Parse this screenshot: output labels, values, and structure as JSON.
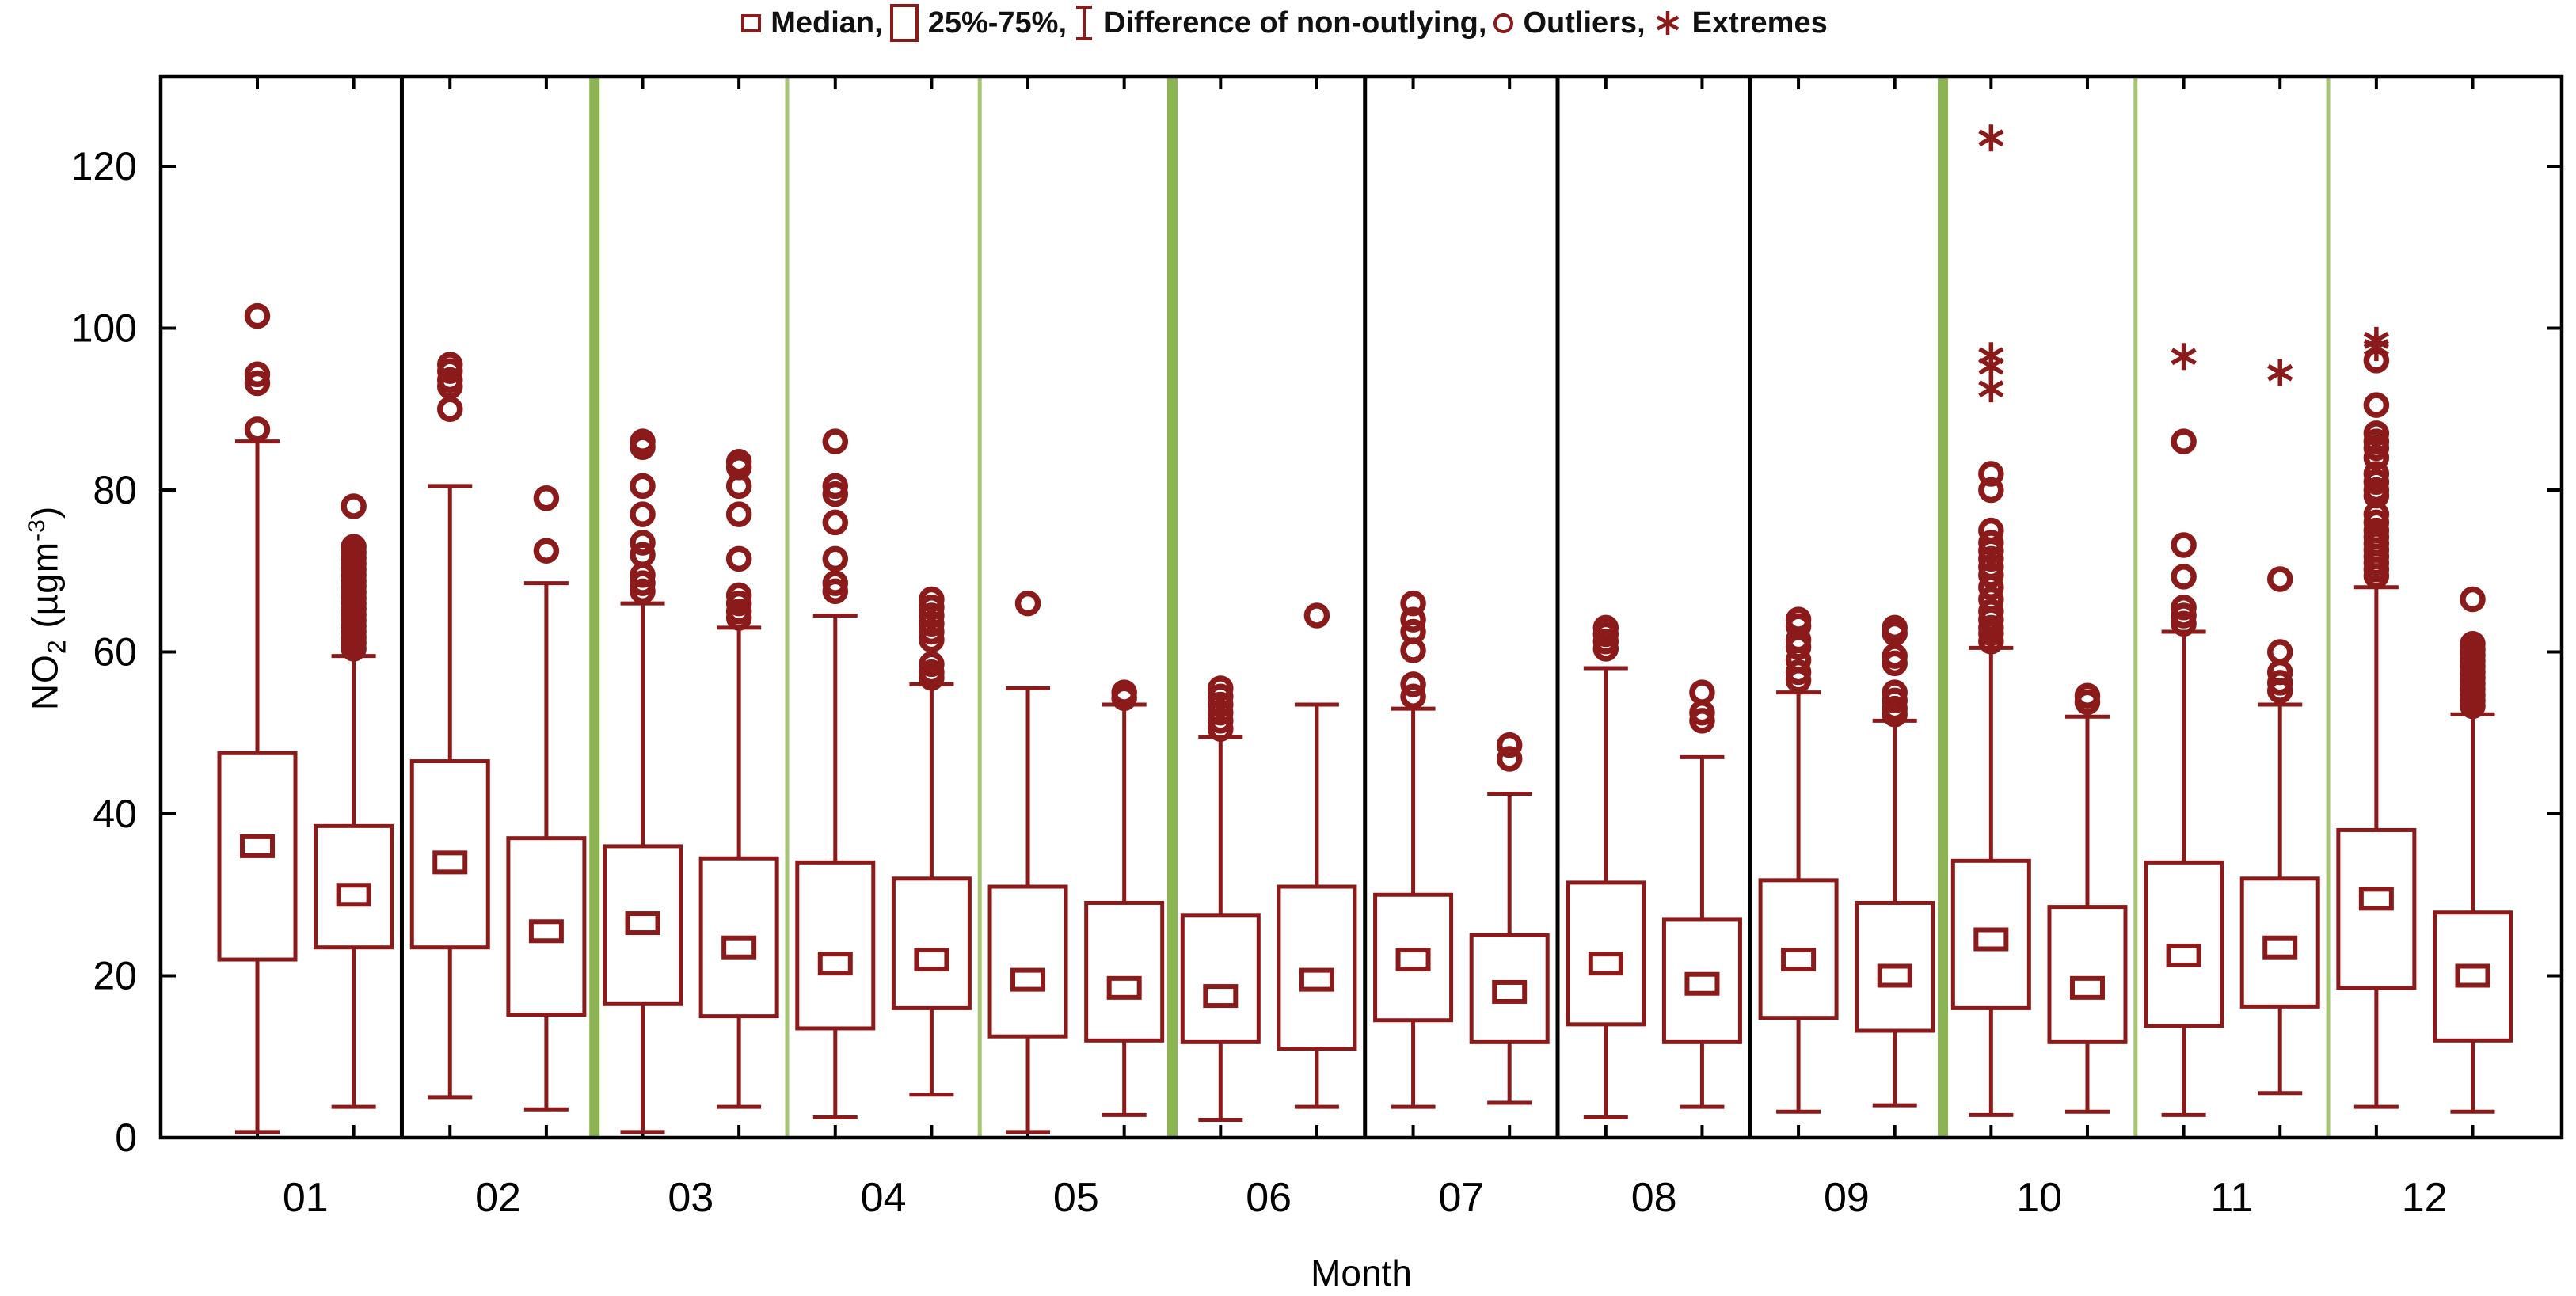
{
  "legend": {
    "items": [
      {
        "icon": "median-square-icon",
        "label": "Median,"
      },
      {
        "icon": "quartile-box-icon",
        "label": "25%-75%,"
      },
      {
        "icon": "whisker-range-icon",
        "label": "Difference of non-outlying,"
      },
      {
        "icon": "outlier-circle-icon",
        "label": "Outliers,"
      },
      {
        "icon": "extreme-asterisk-icon",
        "label": "Extremes"
      }
    ]
  },
  "axes": {
    "ylabel_pre": "NO",
    "ylabel_sub": "2",
    "ylabel_unit": " (µgm",
    "ylabel_sup": "-3",
    "ylabel_close": ")",
    "xlabel": "Month"
  },
  "chart_data": {
    "type": "box",
    "title": "",
    "xlabel": "Month",
    "ylabel": "NO2 (µgm-3)",
    "ylim": [
      0,
      131
    ],
    "y_ticks": [
      0,
      20,
      40,
      60,
      80,
      100,
      120
    ],
    "grid": false,
    "legend_position": "top-center",
    "colors": {
      "box": "#8B1A1A",
      "separator_black": "#000000",
      "separator_green_thick": "#8CB452",
      "separator_green_thin": "#A6C573"
    },
    "months": [
      {
        "label": "01",
        "separator_after": "black",
        "boxes": [
          {
            "median": 36,
            "q1": 22,
            "q3": 47.5,
            "whisker_low": 0.7,
            "whisker_high": 86,
            "outliers": [
              101.5,
              94.3,
              93.2,
              87.5
            ],
            "extremes": []
          },
          {
            "median": 30,
            "q1": 23.5,
            "q3": 38.5,
            "whisker_low": 3.8,
            "whisker_high": 59.5,
            "outliers": [
              78,
              73,
              72.3,
              71.6,
              70.9,
              70.2,
              69.5,
              68.8,
              68.1,
              67.4,
              66.7,
              66,
              65.3,
              64.6,
              63.9,
              63.2,
              62.5,
              61.8,
              61.1,
              60.4
            ],
            "extremes": []
          }
        ]
      },
      {
        "label": "02",
        "separator_after": "green-thick",
        "boxes": [
          {
            "median": 34,
            "q1": 23.5,
            "q3": 46.5,
            "whisker_low": 5,
            "whisker_high": 80.5,
            "outliers": [
              95.5,
              94.7,
              93.6,
              92.8,
              90
            ],
            "extremes": []
          },
          {
            "median": 25.5,
            "q1": 15.2,
            "q3": 37,
            "whisker_low": 3.5,
            "whisker_high": 68.5,
            "outliers": [
              79,
              72.5
            ],
            "extremes": []
          }
        ]
      },
      {
        "label": "03",
        "separator_after": "green-thin",
        "boxes": [
          {
            "median": 26.5,
            "q1": 16.5,
            "q3": 36,
            "whisker_low": 0.7,
            "whisker_high": 66,
            "outliers": [
              86,
              85.3,
              80.5,
              77,
              73.5,
              72,
              69.5,
              68.5,
              67.5
            ],
            "extremes": []
          },
          {
            "median": 23.5,
            "q1": 15,
            "q3": 34.5,
            "whisker_low": 3.8,
            "whisker_high": 63,
            "outliers": [
              83.5,
              82.8,
              80.5,
              77,
              71.5,
              67,
              66,
              65,
              64.2
            ],
            "extremes": []
          }
        ]
      },
      {
        "label": "04",
        "separator_after": "green-thin",
        "boxes": [
          {
            "median": 21.5,
            "q1": 13.5,
            "q3": 34,
            "whisker_low": 2.5,
            "whisker_high": 64.5,
            "outliers": [
              86,
              80.5,
              79.5,
              76,
              71.5,
              68.5,
              67.5
            ],
            "extremes": []
          },
          {
            "median": 22,
            "q1": 16,
            "q3": 32,
            "whisker_low": 5.3,
            "whisker_high": 56,
            "outliers": [
              66.5,
              65.5,
              64.5,
              63.5,
              62.5,
              61.5,
              58.5,
              57.5,
              56.8
            ],
            "extremes": []
          }
        ]
      },
      {
        "label": "05",
        "separator_after": "green-thick",
        "boxes": [
          {
            "median": 19.5,
            "q1": 12.5,
            "q3": 31,
            "whisker_low": 0.7,
            "whisker_high": 55.5,
            "outliers": [
              66
            ],
            "extremes": []
          },
          {
            "median": 18.5,
            "q1": 12,
            "q3": 29,
            "whisker_low": 2.8,
            "whisker_high": 53.5,
            "outliers": [
              55,
              54.3
            ],
            "extremes": []
          }
        ]
      },
      {
        "label": "06",
        "separator_after": "black",
        "boxes": [
          {
            "median": 17.5,
            "q1": 11.8,
            "q3": 27.5,
            "whisker_low": 2.2,
            "whisker_high": 49.5,
            "outliers": [
              55.5,
              54.5,
              53.5,
              52.5,
              51.5,
              50.5
            ],
            "extremes": []
          },
          {
            "median": 19.5,
            "q1": 11,
            "q3": 31,
            "whisker_low": 3.8,
            "whisker_high": 53.5,
            "outliers": [
              64.5
            ],
            "extremes": []
          }
        ]
      },
      {
        "label": "07",
        "separator_after": "black",
        "boxes": [
          {
            "median": 22,
            "q1": 14.5,
            "q3": 30,
            "whisker_low": 3.8,
            "whisker_high": 53,
            "outliers": [
              66,
              64,
              62.5,
              60.2,
              56,
              54.5
            ],
            "extremes": []
          },
          {
            "median": 18,
            "q1": 11.8,
            "q3": 25,
            "whisker_low": 4.3,
            "whisker_high": 42.5,
            "outliers": [
              48.5,
              46.8
            ],
            "extremes": []
          }
        ]
      },
      {
        "label": "08",
        "separator_after": "black",
        "boxes": [
          {
            "median": 21.5,
            "q1": 14,
            "q3": 31.5,
            "whisker_low": 2.5,
            "whisker_high": 58,
            "outliers": [
              63,
              62.2,
              61.3,
              60.4
            ],
            "extremes": []
          },
          {
            "median": 19,
            "q1": 11.8,
            "q3": 27,
            "whisker_low": 3.8,
            "whisker_high": 47,
            "outliers": [
              55,
              52.5,
              51.5
            ],
            "extremes": []
          }
        ]
      },
      {
        "label": "09",
        "separator_after": "green-thick",
        "boxes": [
          {
            "median": 22,
            "q1": 14.8,
            "q3": 31.8,
            "whisker_low": 3.2,
            "whisker_high": 55,
            "outliers": [
              64,
              63.2,
              61.5,
              60.6,
              59,
              57.5,
              56.5
            ],
            "extremes": []
          },
          {
            "median": 20,
            "q1": 13.2,
            "q3": 29,
            "whisker_low": 4,
            "whisker_high": 51.5,
            "outliers": [
              63,
              62.3,
              59.5,
              58.6,
              55,
              54,
              53,
              52.3
            ],
            "extremes": []
          }
        ]
      },
      {
        "label": "10",
        "separator_after": "green-thin",
        "boxes": [
          {
            "median": 24.5,
            "q1": 16,
            "q3": 34.2,
            "whisker_low": 2.8,
            "whisker_high": 60.5,
            "outliers": [
              82,
              80,
              75,
              73.5,
              72.5,
              71.5,
              70.5,
              69.5,
              68,
              66.5,
              65,
              64,
              63,
              62.3,
              61.3
            ],
            "extremes": [
              123.5,
              96.6,
              95.3,
              92.5
            ]
          },
          {
            "median": 18.5,
            "q1": 11.8,
            "q3": 28.5,
            "whisker_low": 3.2,
            "whisker_high": 52,
            "outliers": [
              54.6,
              53.8
            ],
            "extremes": []
          }
        ]
      },
      {
        "label": "11",
        "separator_after": "green-thin",
        "boxes": [
          {
            "median": 22.5,
            "q1": 13.8,
            "q3": 34,
            "whisker_low": 2.8,
            "whisker_high": 62.5,
            "outliers": [
              86,
              73.2,
              69.3,
              65.5,
              64.5,
              63.5
            ],
            "extremes": [
              96.5
            ]
          },
          {
            "median": 23.5,
            "q1": 16.2,
            "q3": 32,
            "whisker_low": 5.5,
            "whisker_high": 53.5,
            "outliers": [
              69,
              60,
              57.5,
              56.2,
              55.2
            ],
            "extremes": [
              94.5
            ]
          }
        ]
      },
      {
        "label": "12",
        "separator_after": null,
        "boxes": [
          {
            "median": 29.5,
            "q1": 18.5,
            "q3": 38,
            "whisker_low": 3.8,
            "whisker_high": 68,
            "outliers": [
              96,
              90.5,
              87,
              86,
              85.2,
              84,
              82,
              81,
              80,
              79.3,
              77,
              76,
              75,
              74.2,
              73.4,
              72.6,
              71.8,
              71,
              70.2,
              69.4
            ],
            "extremes": [
              98.5,
              97.6
            ]
          },
          {
            "median": 20,
            "q1": 12,
            "q3": 27.8,
            "whisker_low": 3.2,
            "whisker_high": 52.3,
            "outliers": [
              66.5,
              61,
              60.3,
              59.6,
              58.9,
              58.2,
              57.5,
              56.8,
              56.1,
              55.4,
              54.7,
              54,
              53.3
            ],
            "extremes": []
          }
        ]
      }
    ]
  }
}
